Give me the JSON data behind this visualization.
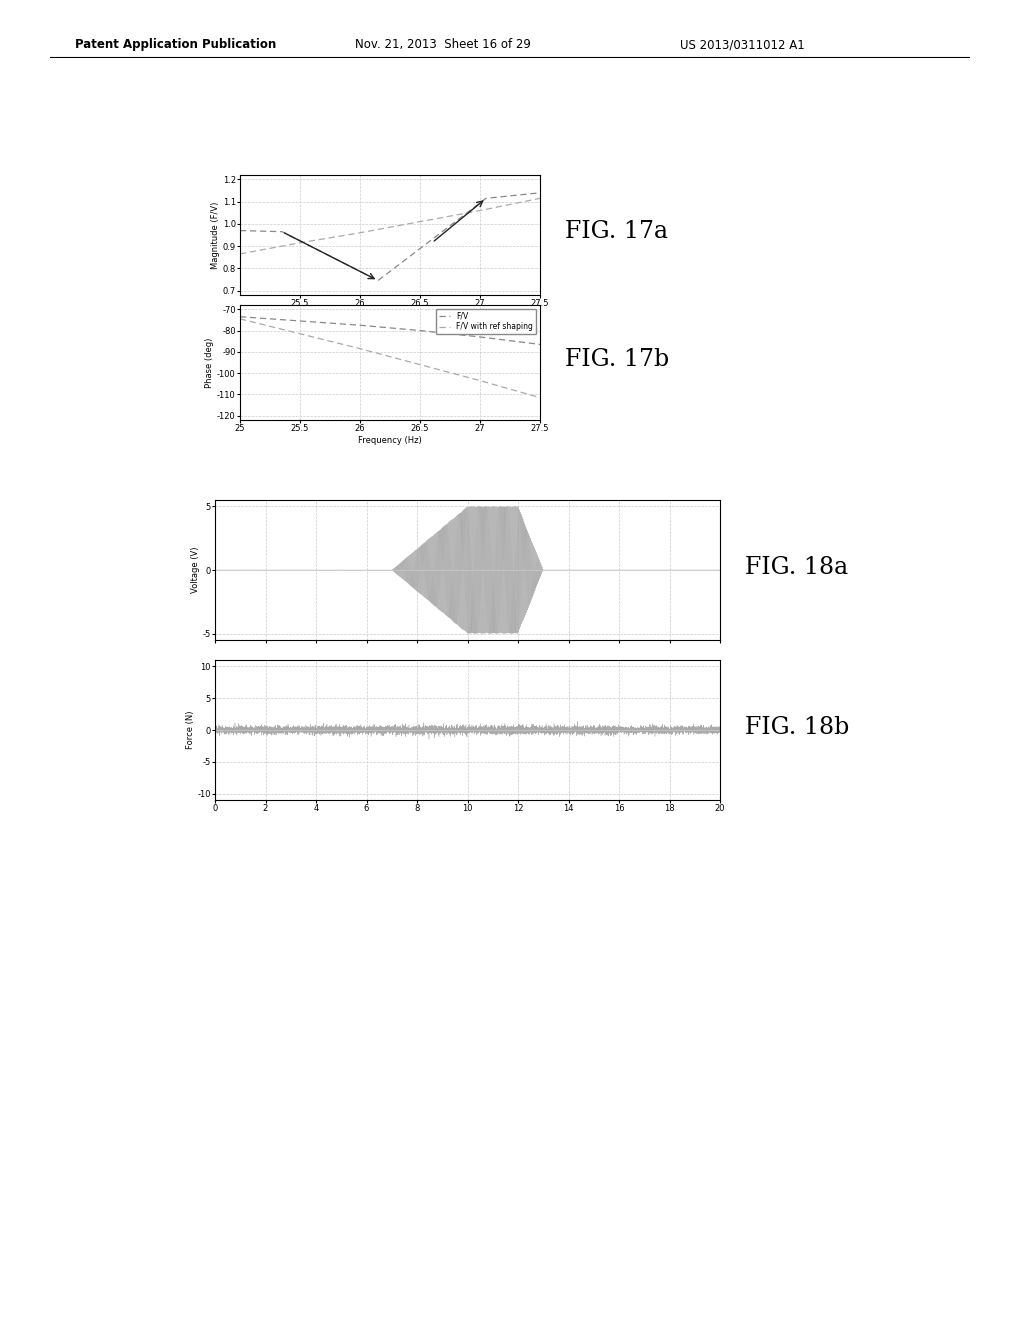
{
  "header_left": "Patent Application Publication",
  "header_mid": "Nov. 21, 2013  Sheet 16 of 29",
  "header_right": "US 2013/0311012 A1",
  "fig17a_label": "FIG. 17a",
  "fig17b_label": "FIG. 17b",
  "fig18a_label": "FIG. 18a",
  "fig18b_label": "FIG. 18b",
  "fig17a_ylabel": "Magnitude (F/V)",
  "fig17a_xlim": [
    25,
    27.5
  ],
  "fig17a_ylim": [
    0.68,
    1.22
  ],
  "fig17a_xticks": [
    25.5,
    26,
    26.5,
    27,
    27.5
  ],
  "fig17a_yticks": [
    0.7,
    0.8,
    0.9,
    1.0,
    1.1,
    1.2
  ],
  "fig17b_xlabel": "Frequency (Hz)",
  "fig17b_ylabel": "Phase (deg)",
  "fig17b_xlim": [
    25,
    27.5
  ],
  "fig17b_ylim": [
    -122,
    -68
  ],
  "fig17b_xticks": [
    25,
    25.5,
    26,
    26.5,
    27,
    27.5
  ],
  "fig17b_yticks": [
    -120,
    -110,
    -100,
    -90,
    -80,
    -70
  ],
  "fig18a_ylabel": "Voltage (V)",
  "fig18a_xlim": [
    0,
    20
  ],
  "fig18a_ylim": [
    -5.5,
    5.5
  ],
  "fig18a_xticks": [
    0,
    2,
    4,
    6,
    8,
    10,
    12,
    14,
    16,
    18,
    20
  ],
  "fig18a_yticks": [
    -5,
    0,
    5
  ],
  "fig18b_ylabel": "Force (N)",
  "fig18b_xlim": [
    0,
    20
  ],
  "fig18b_ylim": [
    -11,
    11
  ],
  "fig18b_xticks": [
    0,
    2,
    4,
    6,
    8,
    10,
    12,
    14,
    16,
    18,
    20
  ],
  "fig18b_yticks": [
    -10,
    -5,
    0,
    5,
    10
  ],
  "line_color": "#aaaaaa",
  "arrow_color": "#222222",
  "bg_color": "#ffffff",
  "legend_fv": "F/V",
  "legend_fv_shaped": "F/V with ref shaping"
}
